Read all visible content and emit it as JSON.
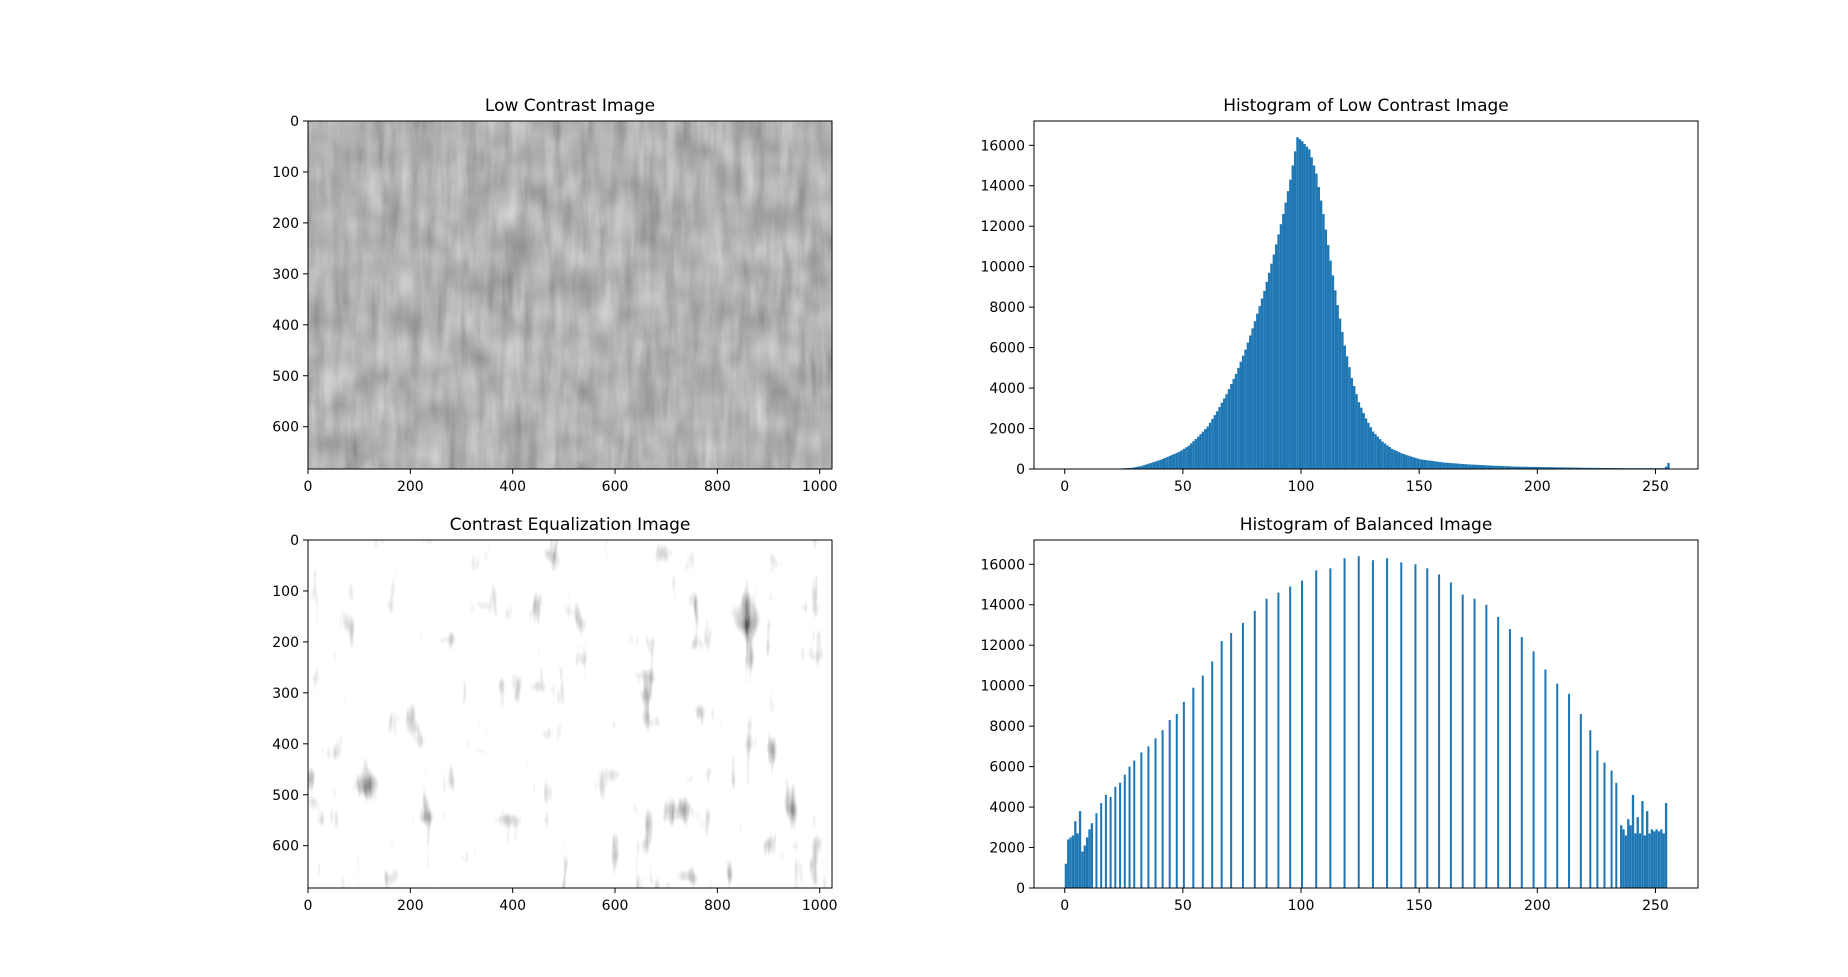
{
  "figure": {
    "bar_color": "#1f77b4"
  },
  "chart_data": [
    {
      "type": "heatmap",
      "panel": "image",
      "title": "Low Contrast Image",
      "content": "grayscale photograph of tall grass and weeds, low contrast",
      "tone": "low-contrast",
      "xlim": [
        0,
        1024
      ],
      "ylim": [
        683,
        0
      ],
      "x_ticks": [
        0,
        200,
        400,
        600,
        800,
        1000
      ],
      "y_ticks": [
        0,
        100,
        200,
        300,
        400,
        500,
        600
      ],
      "grid": false
    },
    {
      "type": "bar",
      "panel": "histogram",
      "title": "Histogram of Low Contrast Image",
      "xlim": [
        -13,
        268
      ],
      "ylim": [
        0,
        17200
      ],
      "x_ticks": [
        0,
        50,
        100,
        150,
        200,
        250
      ],
      "y_ticks": [
        0,
        2000,
        4000,
        6000,
        8000,
        10000,
        12000,
        14000,
        16000
      ],
      "grid": false,
      "distribution": "unimodal",
      "peak_bin": 98,
      "peak_value": 16400,
      "anchors": [
        [
          0,
          0
        ],
        [
          20,
          10
        ],
        [
          28,
          60
        ],
        [
          32,
          150
        ],
        [
          36,
          300
        ],
        [
          40,
          450
        ],
        [
          44,
          650
        ],
        [
          48,
          850
        ],
        [
          52,
          1150
        ],
        [
          56,
          1600
        ],
        [
          60,
          2100
        ],
        [
          64,
          2850
        ],
        [
          68,
          3700
        ],
        [
          72,
          4700
        ],
        [
          76,
          5900
        ],
        [
          80,
          7300
        ],
        [
          84,
          8800
        ],
        [
          88,
          10600
        ],
        [
          92,
          12600
        ],
        [
          95,
          14300
        ],
        [
          98,
          16400
        ],
        [
          100,
          16200
        ],
        [
          103,
          15800
        ],
        [
          106,
          14600
        ],
        [
          109,
          12600
        ],
        [
          112,
          10300
        ],
        [
          115,
          8100
        ],
        [
          118,
          6100
        ],
        [
          121,
          4500
        ],
        [
          124,
          3300
        ],
        [
          127,
          2500
        ],
        [
          130,
          1850
        ],
        [
          134,
          1350
        ],
        [
          138,
          1000
        ],
        [
          142,
          780
        ],
        [
          146,
          620
        ],
        [
          150,
          480
        ],
        [
          160,
          320
        ],
        [
          170,
          230
        ],
        [
          180,
          170
        ],
        [
          190,
          120
        ],
        [
          200,
          100
        ],
        [
          210,
          80
        ],
        [
          220,
          60
        ],
        [
          230,
          50
        ],
        [
          240,
          40
        ],
        [
          250,
          40
        ],
        [
          253,
          40
        ],
        [
          254,
          120
        ],
        [
          255,
          300
        ]
      ]
    },
    {
      "type": "heatmap",
      "panel": "image",
      "title": "Contrast Equalization Image",
      "content": "grayscale photograph of tall grass and weeds after histogram equalization",
      "tone": "high-contrast",
      "xlim": [
        0,
        1024
      ],
      "ylim": [
        683,
        0
      ],
      "x_ticks": [
        0,
        200,
        400,
        600,
        800,
        1000
      ],
      "y_ticks": [
        0,
        100,
        200,
        300,
        400,
        500,
        600
      ],
      "grid": false
    },
    {
      "type": "bar",
      "panel": "histogram",
      "title": "Histogram of Balanced Image",
      "xlim": [
        -13,
        268
      ],
      "ylim": [
        0,
        17200
      ],
      "x_ticks": [
        0,
        50,
        100,
        150,
        200,
        250
      ],
      "y_ticks": [
        0,
        2000,
        4000,
        6000,
        8000,
        10000,
        12000,
        14000,
        16000
      ],
      "grid": false,
      "dense_bars": [
        [
          0,
          1200
        ],
        [
          1,
          2400
        ],
        [
          2,
          2500
        ],
        [
          3,
          2600
        ],
        [
          4,
          3300
        ],
        [
          5,
          2700
        ],
        [
          6,
          3800
        ],
        [
          7,
          1800
        ],
        [
          8,
          2100
        ],
        [
          9,
          2500
        ],
        [
          10,
          2900
        ],
        [
          11,
          3200
        ],
        [
          235,
          3100
        ],
        [
          236,
          2900
        ],
        [
          237,
          2600
        ],
        [
          238,
          3400
        ],
        [
          239,
          3100
        ],
        [
          240,
          4600
        ],
        [
          241,
          2700
        ],
        [
          242,
          3500
        ],
        [
          243,
          2700
        ],
        [
          244,
          4300
        ],
        [
          245,
          2600
        ],
        [
          246,
          3800
        ],
        [
          247,
          2700
        ],
        [
          248,
          2900
        ],
        [
          249,
          2800
        ],
        [
          250,
          2900
        ],
        [
          251,
          2800
        ],
        [
          252,
          2900
        ],
        [
          253,
          2700
        ],
        [
          254,
          4200
        ]
      ],
      "sparse_bars": [
        [
          13,
          3700
        ],
        [
          15,
          4200
        ],
        [
          17,
          4600
        ],
        [
          19,
          4500
        ],
        [
          21,
          5000
        ],
        [
          23,
          5200
        ],
        [
          25,
          5600
        ],
        [
          27,
          6000
        ],
        [
          29,
          6300
        ],
        [
          32,
          6700
        ],
        [
          35,
          7000
        ],
        [
          38,
          7400
        ],
        [
          41,
          7800
        ],
        [
          44,
          8300
        ],
        [
          47,
          8600
        ],
        [
          50,
          9200
        ],
        [
          54,
          9900
        ],
        [
          58,
          10500
        ],
        [
          62,
          11200
        ],
        [
          66,
          12200
        ],
        [
          70,
          12600
        ],
        [
          75,
          13100
        ],
        [
          80,
          13700
        ],
        [
          85,
          14300
        ],
        [
          90,
          14600
        ],
        [
          95,
          14900
        ],
        [
          100,
          15200
        ],
        [
          106,
          15700
        ],
        [
          112,
          15800
        ],
        [
          118,
          16300
        ],
        [
          124,
          16400
        ],
        [
          130,
          16200
        ],
        [
          136,
          16300
        ],
        [
          142,
          16100
        ],
        [
          148,
          16000
        ],
        [
          153,
          15800
        ],
        [
          158,
          15500
        ],
        [
          163,
          15100
        ],
        [
          168,
          14500
        ],
        [
          173,
          14300
        ],
        [
          178,
          14000
        ],
        [
          183,
          13400
        ],
        [
          188,
          12800
        ],
        [
          193,
          12400
        ],
        [
          198,
          11700
        ],
        [
          203,
          10800
        ],
        [
          208,
          10100
        ],
        [
          213,
          9600
        ],
        [
          218,
          8600
        ],
        [
          222,
          7800
        ],
        [
          225,
          6800
        ],
        [
          228,
          6200
        ],
        [
          231,
          5800
        ],
        [
          233,
          5200
        ]
      ]
    }
  ]
}
